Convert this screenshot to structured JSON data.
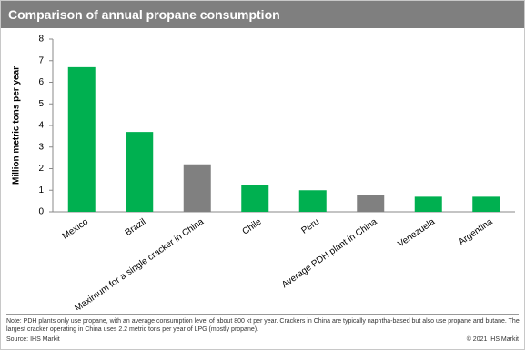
{
  "chart_data": {
    "type": "bar",
    "title": "Comparison of annual propane consumption",
    "y_label": "Million metric tons per year",
    "categories": [
      "Mexico",
      "Brazil",
      "Maximum for a single cracker in China",
      "Chile",
      "Peru",
      "Average PDH plant in China",
      "Venezuela",
      "Argentina"
    ],
    "values": [
      6.7,
      3.7,
      2.2,
      1.25,
      1.0,
      0.8,
      0.7,
      0.7
    ],
    "colors": [
      "#00b050",
      "#00b050",
      "#808080",
      "#00b050",
      "#00b050",
      "#808080",
      "#00b050",
      "#00b050"
    ],
    "ylim": [
      0,
      8
    ],
    "yticks": [
      0,
      1,
      2,
      3,
      4,
      5,
      6,
      7,
      8
    ],
    "grid": false,
    "note": "Note: PDH plants only use propane, with an average consumption level of about 800 kt per year. Crackers in China are typically naphtha-based but also use propane and butane. The largest cracker operating in China uses 2.2 metric tons per year of LPG (mostly propane).",
    "source": "Source: IHS Markit",
    "copyright": "© 2021 IHS Markit"
  }
}
